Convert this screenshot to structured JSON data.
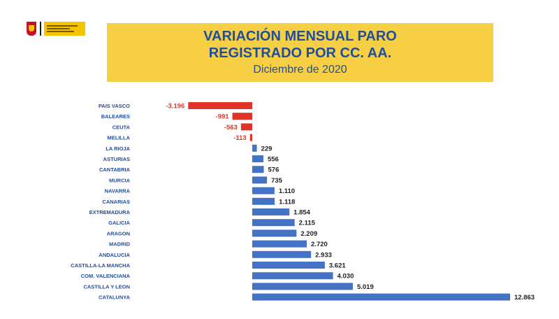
{
  "header": {
    "title_line1": "VARIACIÓN MENSUAL PARO",
    "title_line2": "REGISTRADO POR CC. AA.",
    "subtitle": "Diciembre de 2020"
  },
  "colors": {
    "negative": "#e03428",
    "positive": "#4472c4",
    "label": "#1f4e9c",
    "title_bg": "#f7cf45"
  },
  "chart_data": {
    "type": "bar",
    "orientation": "horizontal",
    "categories": [
      "PAIS VASCO",
      "BALEARES",
      "CEUTA",
      "MELILLA",
      "LA RIOJA",
      "ASTURIAS",
      "CANTABRIA",
      "MURCIA",
      "NAVARRA",
      "CANARIAS",
      "EXTREMADURA",
      "GALICIA",
      "ARAGON",
      "MADRID",
      "ANDALUCIA",
      "CASTILLA-LA MANCHA",
      "COM. VALENCIANA",
      "CASTILLA Y LEON",
      "CATALUNYA"
    ],
    "values": [
      -3196,
      -991,
      -563,
      -113,
      229,
      556,
      576,
      735,
      1110,
      1118,
      1854,
      2115,
      2209,
      2720,
      2933,
      3621,
      4030,
      5019,
      12863
    ],
    "labels": [
      "-3.196",
      "-991",
      "-563",
      "-113",
      "229",
      "556",
      "576",
      "735",
      "1.110",
      "1.118",
      "1.854",
      "2.115",
      "2.209",
      "2.720",
      "2.933",
      "3.621",
      "4.030",
      "5.019",
      "12.863"
    ],
    "title": "VARIACIÓN MENSUAL PARO REGISTRADO POR CC. AA.",
    "subtitle": "Diciembre de 2020",
    "xlim": [
      -3196,
      12863
    ],
    "grid": false,
    "legend": "none"
  }
}
